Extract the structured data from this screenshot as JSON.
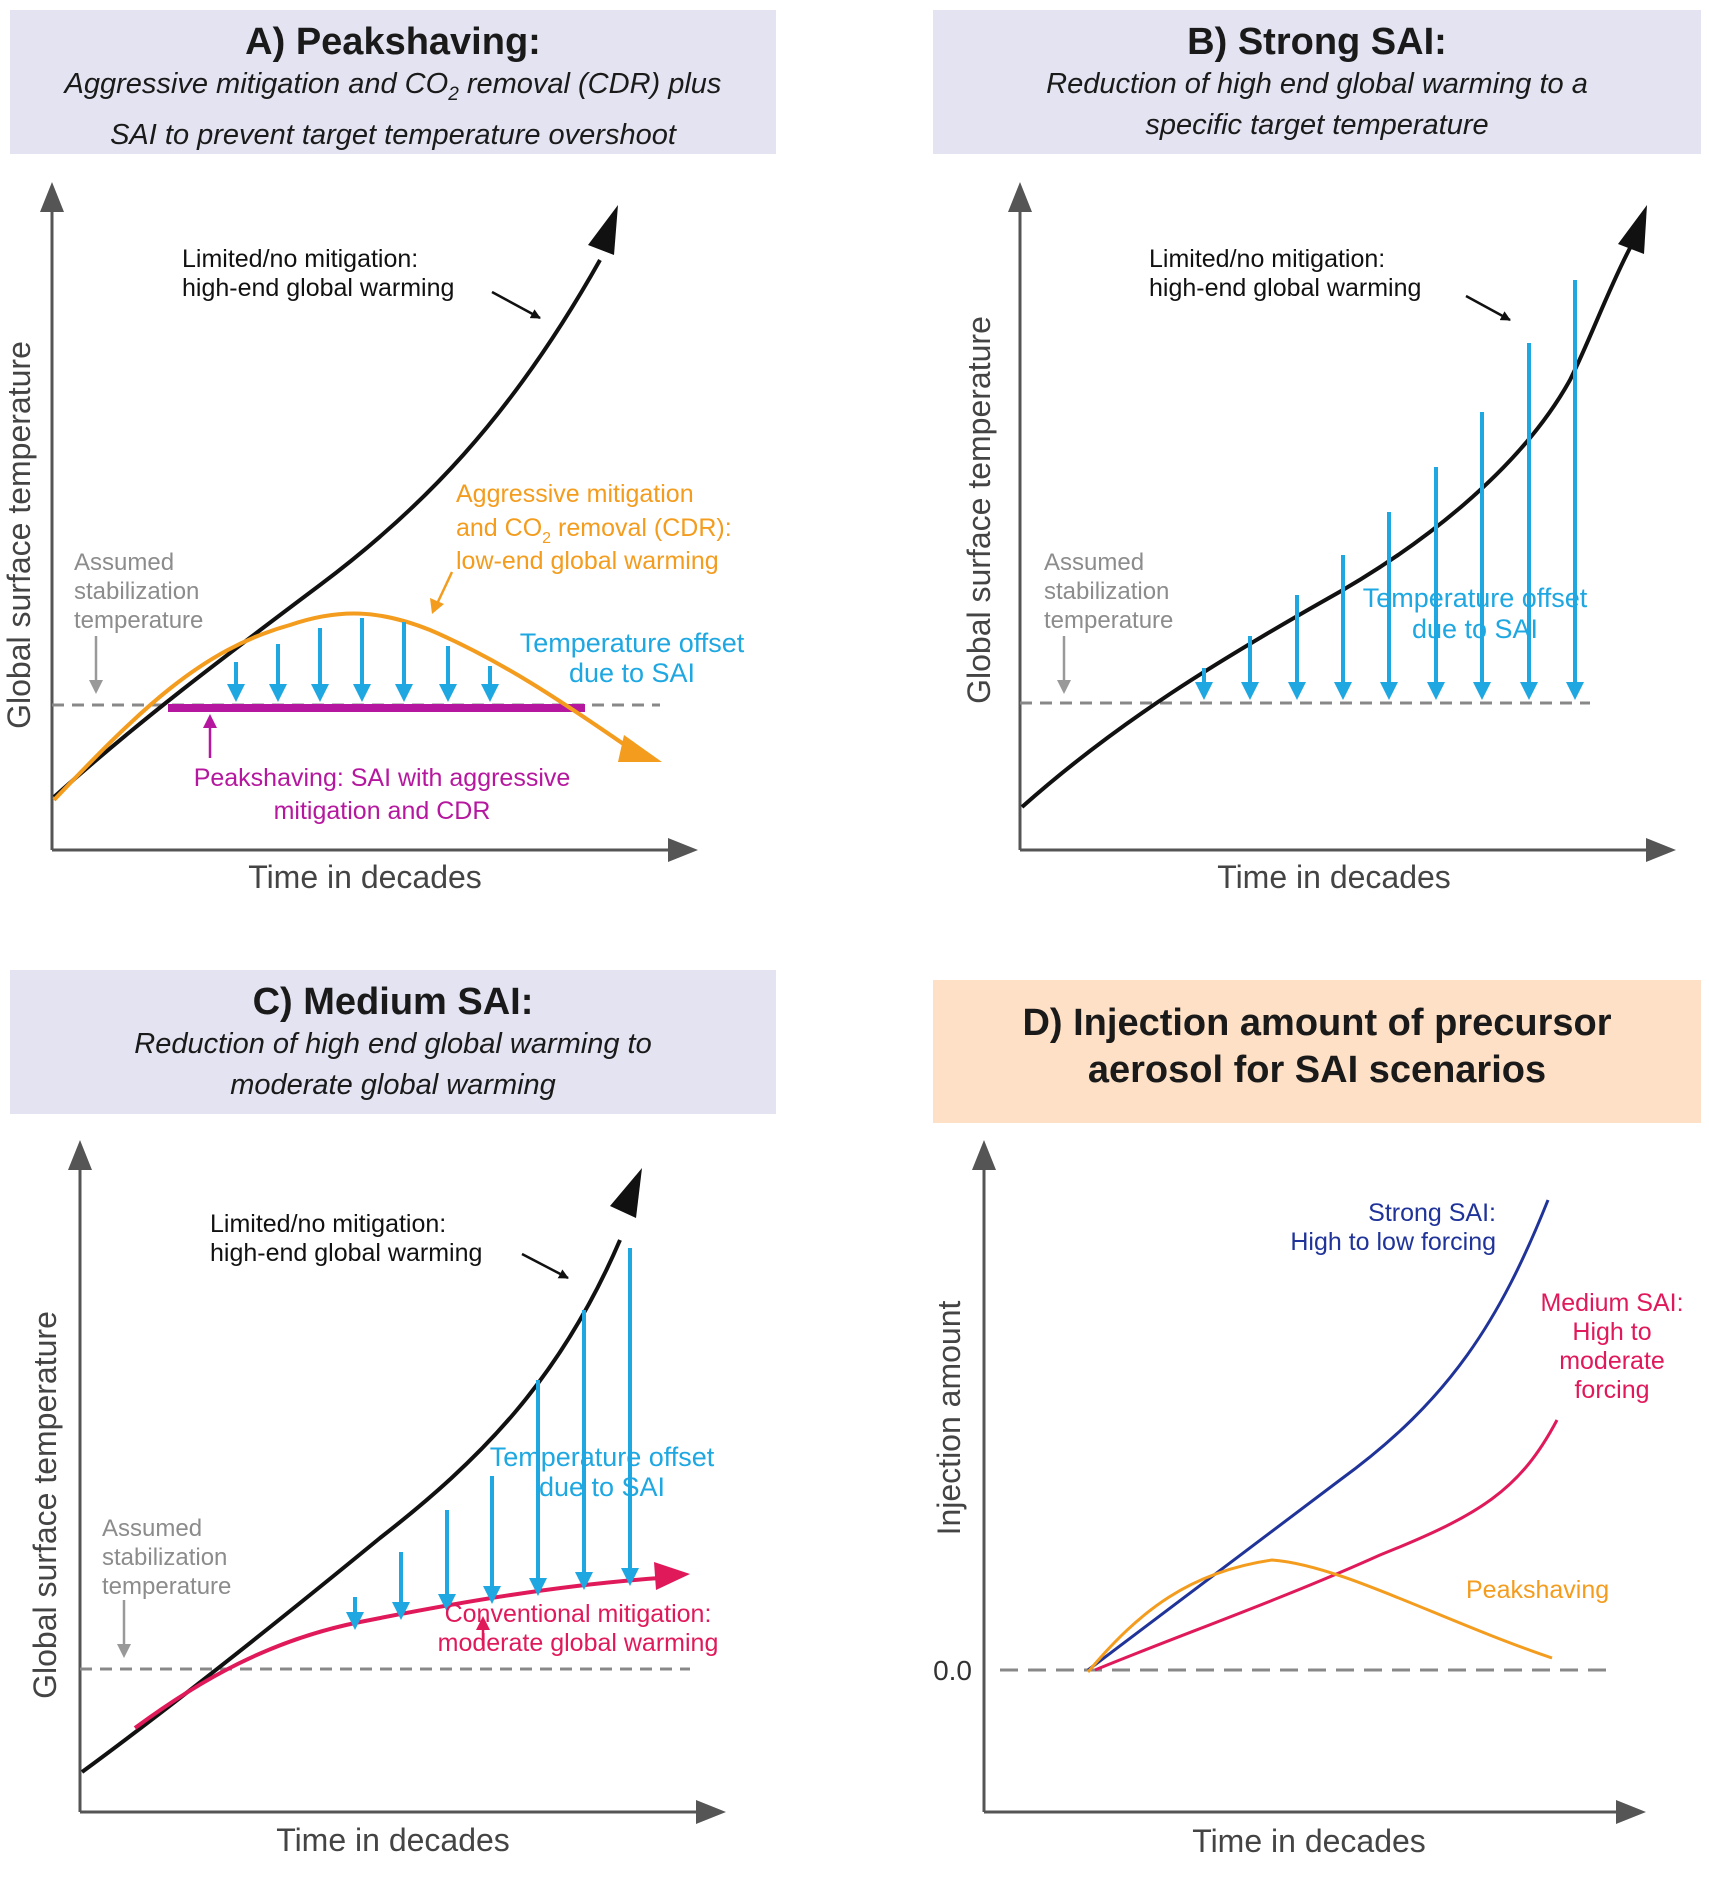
{
  "panels": {
    "a": {
      "title": "A) Peakshaving:",
      "subtitle_1": "Aggressive mitigation and CO",
      "subtitle_1_sub": "2",
      "subtitle_1_end": " removal (CDR) plus",
      "subtitle_2": "SAI to prevent target temperature overshoot",
      "ylabel": "Global surface temperature",
      "xlabel": "Time in decades",
      "limited_1": "Limited/no mitigation:",
      "limited_2": "high-end global warming",
      "aggr_1": "Aggressive mitigation",
      "aggr_2a": "and CO",
      "aggr_2sub": "2",
      "aggr_2b": " removal (CDR):",
      "aggr_3": "low-end global warming",
      "offset_1": "Temperature offset",
      "offset_2": "due to SAI",
      "stab_1": "Assumed",
      "stab_2": "stabilization",
      "stab_3": "temperature",
      "peak_1": "Peakshaving: SAI with aggressive",
      "peak_2": "mitigation and CDR"
    },
    "b": {
      "title": "B) Strong SAI:",
      "subtitle_1": "Reduction of high end global warming to a",
      "subtitle_2": "specific target temperature",
      "ylabel": "Global surface temperature",
      "xlabel": "Time in decades",
      "limited_1": "Limited/no mitigation:",
      "limited_2": "high-end global warming",
      "offset_1": "Temperature offset",
      "offset_2": "due to SAI",
      "stab_1": "Assumed",
      "stab_2": "stabilization",
      "stab_3": "temperature"
    },
    "c": {
      "title": "C) Medium SAI:",
      "subtitle_1": "Reduction of high end global warming to",
      "subtitle_2": "moderate global warming",
      "ylabel": "Global surface temperature",
      "xlabel": "Time in decades",
      "limited_1": "Limited/no mitigation:",
      "limited_2": "high-end global warming",
      "offset_1": "Temperature offset",
      "offset_2": "due to SAI",
      "stab_1": "Assumed",
      "stab_2": "stabilization",
      "stab_3": "temperature",
      "conv_1": "Conventional mitigation:",
      "conv_2": "moderate global warming"
    },
    "d": {
      "title_1": "D) Injection amount of precursor",
      "title_2": "aerosol for SAI scenarios",
      "ylabel": "Injection amount",
      "xlabel": "Time in decades",
      "zero_tick": "0.0",
      "strong_1": "Strong SAI:",
      "strong_2": "High to low forcing",
      "medium_1": "Medium SAI:",
      "medium_2": "High to",
      "medium_3": "moderate",
      "medium_4": "forcing",
      "peak": "Peakshaving"
    }
  },
  "colors": {
    "black_curve": "#111111",
    "orange": "#f39c1e",
    "purple": "#b5179e",
    "blue_arrows": "#1ea7e0",
    "magenta": "#e0195a",
    "navy": "#1f3399",
    "gray_text": "#8c8c8c",
    "axis": "#555555"
  }
}
